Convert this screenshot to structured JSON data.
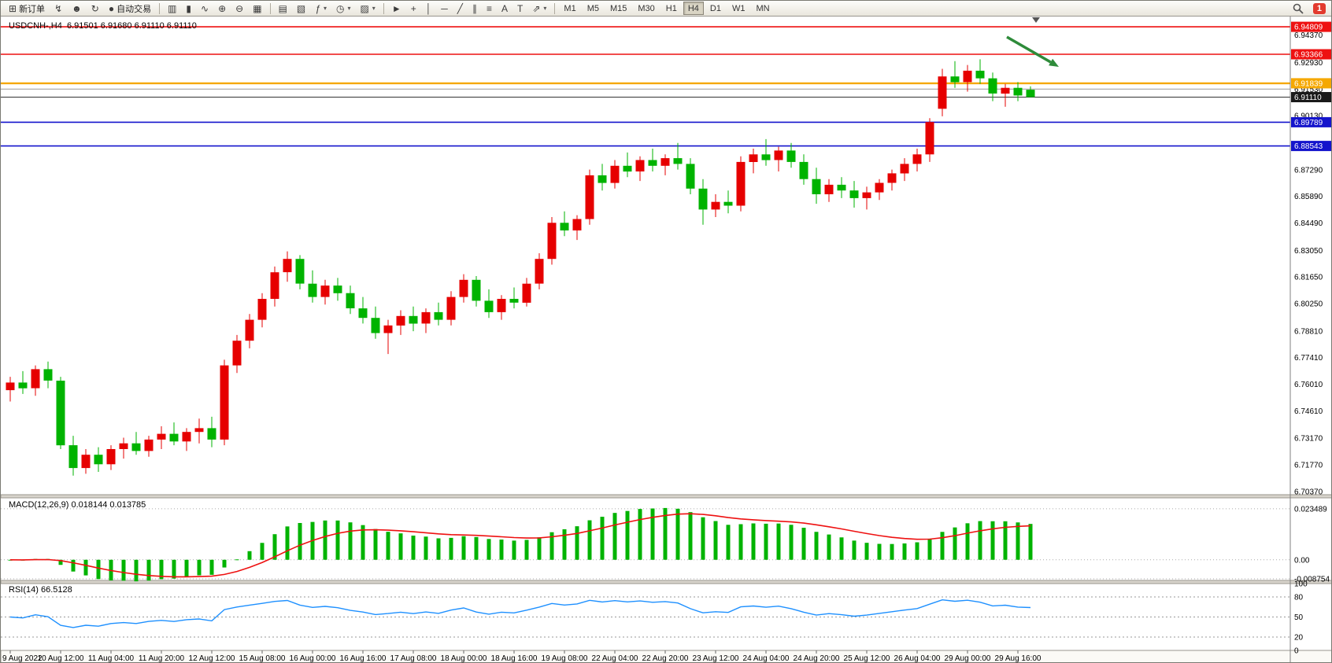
{
  "toolbar": {
    "groups": [
      [
        {
          "name": "new-order",
          "glyph": "⊞",
          "label": "新订单"
        },
        {
          "name": "bolt",
          "glyph": "↯"
        },
        {
          "name": "profiles",
          "glyph": "☻"
        },
        {
          "name": "refresh",
          "glyph": "↻"
        },
        {
          "name": "auto-trading",
          "glyph": "●",
          "label": "自动交易"
        }
      ],
      [
        {
          "name": "bar-chart",
          "glyph": "▥"
        },
        {
          "name": "candle-chart",
          "glyph": "▮"
        },
        {
          "name": "line-chart",
          "glyph": "∿"
        },
        {
          "name": "zoom-in",
          "glyph": "⊕"
        },
        {
          "name": "zoom-out",
          "glyph": "⊖"
        },
        {
          "name": "tile-windows",
          "glyph": "▦"
        }
      ],
      [
        {
          "name": "data-window",
          "glyph": "▤"
        },
        {
          "name": "navigator",
          "glyph": "▧"
        },
        {
          "name": "indicators",
          "glyph": "ƒ",
          "dropdown": true
        },
        {
          "name": "periods",
          "glyph": "◷",
          "dropdown": true
        },
        {
          "name": "templates",
          "glyph": "▨",
          "dropdown": true
        }
      ],
      [
        {
          "name": "cursor",
          "glyph": "►"
        },
        {
          "name": "crosshair",
          "glyph": "+"
        },
        {
          "name": "vertical-line",
          "glyph": "│"
        },
        {
          "name": "horizontal-line",
          "glyph": "─"
        },
        {
          "name": "trendline",
          "glyph": "╱"
        },
        {
          "name": "channel",
          "glyph": "∥"
        },
        {
          "name": "fibonacci",
          "glyph": "≡"
        },
        {
          "name": "text",
          "glyph": "A"
        },
        {
          "name": "text-label",
          "glyph": "T"
        },
        {
          "name": "arrows",
          "glyph": "⇗",
          "dropdown": true
        }
      ]
    ],
    "timeframes": [
      "M1",
      "M5",
      "M15",
      "M30",
      "H1",
      "H4",
      "D1",
      "W1",
      "MN"
    ],
    "active_timeframe": "H4",
    "notification_badge": "1"
  },
  "chart": {
    "symbol_info": "USDCNH-,H4  6.91501 6.91680 6.91110 6.91110",
    "macd_label": "MACD(12,26,9) 0.018144 0.013785",
    "rsi_label": "RSI(14) 66.5128"
  },
  "chart_data": {
    "type": "candlestick",
    "symbol": "USDCNH-",
    "timeframe": "H4",
    "up_color": "#e60000",
    "down_color": "#00b300",
    "price_axis": {
      "min": 6.702,
      "max": 6.9535,
      "labels": [
        {
          "text": "6.94370",
          "value": 6.9437
        },
        {
          "text": "6.92930",
          "value": 6.9293
        },
        {
          "text": "6.91530",
          "value": 6.9153
        },
        {
          "text": "6.90130",
          "value": 6.9013
        },
        {
          "text": "6.87290",
          "value": 6.8729
        },
        {
          "text": "6.85890",
          "value": 6.8589
        },
        {
          "text": "6.84490",
          "value": 6.8449
        },
        {
          "text": "6.83050",
          "value": 6.8305
        },
        {
          "text": "6.81650",
          "value": 6.8165
        },
        {
          "text": "6.80250",
          "value": 6.8025
        },
        {
          "text": "6.78810",
          "value": 6.7881
        },
        {
          "text": "6.77410",
          "value": 6.7741
        },
        {
          "text": "6.76010",
          "value": 6.7601
        },
        {
          "text": "6.74610",
          "value": 6.7461
        },
        {
          "text": "6.73170",
          "value": 6.7317
        },
        {
          "text": "6.71770",
          "value": 6.7177
        },
        {
          "text": "6.70370",
          "value": 6.7037
        }
      ]
    },
    "hlines": [
      {
        "label": "6.94809",
        "value": 6.94809,
        "color": "#ee1111",
        "width": 1.6,
        "tag": true
      },
      {
        "label": "6.93366",
        "value": 6.93366,
        "color": "#ee1111",
        "width": 1.6,
        "tag": true
      },
      {
        "label": "6.91839",
        "value": 6.91839,
        "color": "#f5a800",
        "width": 2.4,
        "tag": true
      },
      {
        "label": "6.91530",
        "value": 6.9153,
        "color": "#999999",
        "width": 1,
        "tag": false
      },
      {
        "label": "6.89789",
        "value": 6.89789,
        "color": "#1414cc",
        "width": 1.6,
        "tag": true
      },
      {
        "label": "6.88543",
        "value": 6.88543,
        "color": "#1414cc",
        "width": 1.6,
        "tag": true
      }
    ],
    "current_price": {
      "label": "6.91110",
      "value": 6.9111,
      "color": "#1a1a1a"
    },
    "annotation_arrow": {
      "from": [
        1278,
        46
      ],
      "to": [
        1344,
        84
      ],
      "color": "#2e8b3a"
    },
    "macd": {
      "params": "12,26,9",
      "range": [
        -0.0095,
        0.0285
      ],
      "grid": [
        {
          "text": "0.023489",
          "value": 0.023489
        },
        {
          "text": "0.00",
          "value": 0
        },
        {
          "text": "-0.008754",
          "value": -0.008754
        }
      ],
      "histogram_color": "#00b300",
      "signal_color": "#ee1111"
    },
    "rsi": {
      "period": 14,
      "value": 66.5128,
      "line_color": "#1e90ff",
      "levels": [
        {
          "text": "100",
          "value": 100
        },
        {
          "text": "80",
          "value": 80
        },
        {
          "text": "50",
          "value": 50
        },
        {
          "text": "20",
          "value": 20
        },
        {
          "text": "0",
          "value": 0
        }
      ],
      "dashed_levels": [
        80,
        50,
        20
      ]
    },
    "time_labels": [
      "9 Aug 2022",
      "10 Aug 12:00",
      "11 Aug 04:00",
      "11 Aug 20:00",
      "12 Aug 12:00",
      "15 Aug 08:00",
      "16 Aug 00:00",
      "16 Aug 16:00",
      "17 Aug 08:00",
      "18 Aug 00:00",
      "18 Aug 16:00",
      "19 Aug 08:00",
      "22 Aug 04:00",
      "22 Aug 20:00",
      "23 Aug 12:00",
      "24 Aug 04:00",
      "24 Aug 20:00",
      "25 Aug 12:00",
      "26 Aug 04:00",
      "29 Aug 00:00",
      "29 Aug 16:00"
    ],
    "candles": [
      [
        6.757,
        6.764,
        6.751,
        6.761
      ],
      [
        6.761,
        6.767,
        6.755,
        6.758
      ],
      [
        6.758,
        6.77,
        6.754,
        6.768
      ],
      [
        6.768,
        6.772,
        6.758,
        6.762
      ],
      [
        6.762,
        6.764,
        6.726,
        6.728
      ],
      [
        6.728,
        6.733,
        6.712,
        6.716
      ],
      [
        6.716,
        6.726,
        6.713,
        6.723
      ],
      [
        6.723,
        6.727,
        6.714,
        6.718
      ],
      [
        6.718,
        6.728,
        6.715,
        6.726
      ],
      [
        6.726,
        6.732,
        6.721,
        6.729
      ],
      [
        6.729,
        6.735,
        6.723,
        6.725
      ],
      [
        6.725,
        6.733,
        6.722,
        6.731
      ],
      [
        6.731,
        6.738,
        6.726,
        6.734
      ],
      [
        6.734,
        6.74,
        6.728,
        6.73
      ],
      [
        6.73,
        6.737,
        6.725,
        6.735
      ],
      [
        6.735,
        6.742,
        6.729,
        6.737
      ],
      [
        6.737,
        6.743,
        6.727,
        6.731
      ],
      [
        6.731,
        6.773,
        6.728,
        6.77
      ],
      [
        6.77,
        6.786,
        6.766,
        6.783
      ],
      [
        6.783,
        6.797,
        6.779,
        6.794
      ],
      [
        6.794,
        6.808,
        6.79,
        6.805
      ],
      [
        6.805,
        6.822,
        6.801,
        6.819
      ],
      [
        6.819,
        6.83,
        6.814,
        6.826
      ],
      [
        6.826,
        6.828,
        6.81,
        6.813
      ],
      [
        6.813,
        6.82,
        6.803,
        6.806
      ],
      [
        6.806,
        6.815,
        6.802,
        6.812
      ],
      [
        6.812,
        6.816,
        6.804,
        6.808
      ],
      [
        6.808,
        6.812,
        6.797,
        6.8
      ],
      [
        6.8,
        6.806,
        6.792,
        6.795
      ],
      [
        6.795,
        6.801,
        6.784,
        6.787
      ],
      [
        6.787,
        6.794,
        6.776,
        6.791
      ],
      [
        6.791,
        6.799,
        6.786,
        6.796
      ],
      [
        6.796,
        6.801,
        6.788,
        6.792
      ],
      [
        6.792,
        6.8,
        6.787,
        6.798
      ],
      [
        6.798,
        6.803,
        6.791,
        6.794
      ],
      [
        6.794,
        6.809,
        6.791,
        6.806
      ],
      [
        6.806,
        6.818,
        6.803,
        6.815
      ],
      [
        6.815,
        6.817,
        6.801,
        6.804
      ],
      [
        6.804,
        6.81,
        6.795,
        6.798
      ],
      [
        6.798,
        6.807,
        6.794,
        6.805
      ],
      [
        6.805,
        6.811,
        6.8,
        6.803
      ],
      [
        6.803,
        6.816,
        6.801,
        6.813
      ],
      [
        6.813,
        6.829,
        6.81,
        6.826
      ],
      [
        6.826,
        6.848,
        6.823,
        6.845
      ],
      [
        6.845,
        6.851,
        6.838,
        6.841
      ],
      [
        6.841,
        6.849,
        6.836,
        6.847
      ],
      [
        6.847,
        6.873,
        6.844,
        6.87
      ],
      [
        6.87,
        6.876,
        6.862,
        6.866
      ],
      [
        6.866,
        6.878,
        6.863,
        6.875
      ],
      [
        6.875,
        6.882,
        6.869,
        6.872
      ],
      [
        6.872,
        6.88,
        6.867,
        6.878
      ],
      [
        6.878,
        6.884,
        6.872,
        6.875
      ],
      [
        6.875,
        6.881,
        6.87,
        6.879
      ],
      [
        6.879,
        6.887,
        6.873,
        6.876
      ],
      [
        6.876,
        6.879,
        6.86,
        6.863
      ],
      [
        6.863,
        6.868,
        6.844,
        6.852
      ],
      [
        6.852,
        6.86,
        6.848,
        6.856
      ],
      [
        6.856,
        6.862,
        6.85,
        6.854
      ],
      [
        6.854,
        6.88,
        6.851,
        6.877
      ],
      [
        6.877,
        6.884,
        6.871,
        6.881
      ],
      [
        6.881,
        6.889,
        6.875,
        6.878
      ],
      [
        6.878,
        6.885,
        6.872,
        6.883
      ],
      [
        6.883,
        6.887,
        6.874,
        6.877
      ],
      [
        6.877,
        6.881,
        6.865,
        6.868
      ],
      [
        6.868,
        6.874,
        6.855,
        6.86
      ],
      [
        6.86,
        6.868,
        6.856,
        6.865
      ],
      [
        6.865,
        6.869,
        6.858,
        6.862
      ],
      [
        6.862,
        6.867,
        6.853,
        6.858
      ],
      [
        6.858,
        6.864,
        6.852,
        6.861
      ],
      [
        6.861,
        6.868,
        6.857,
        6.866
      ],
      [
        6.866,
        6.873,
        6.862,
        6.871
      ],
      [
        6.871,
        6.879,
        6.867,
        6.876
      ],
      [
        6.876,
        6.884,
        6.872,
        6.881
      ],
      [
        6.881,
        6.9,
        6.877,
        6.898
      ],
      [
        6.905,
        6.926,
        6.901,
        6.922
      ],
      [
        6.922,
        6.93,
        6.916,
        6.919
      ],
      [
        6.919,
        6.928,
        6.914,
        6.925
      ],
      [
        6.925,
        6.931,
        6.918,
        6.921
      ],
      [
        6.921,
        6.924,
        6.909,
        6.913
      ],
      [
        6.913,
        6.918,
        6.906,
        6.916
      ],
      [
        6.916,
        6.919,
        6.909,
        6.912
      ],
      [
        6.915,
        6.9168,
        6.9111,
        6.9111
      ]
    ]
  }
}
